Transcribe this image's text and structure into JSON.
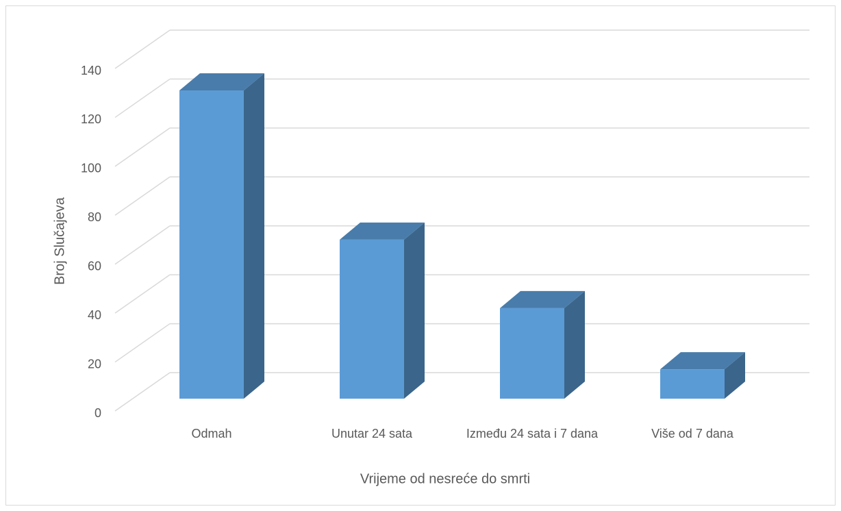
{
  "chart_data": {
    "type": "bar3d",
    "x_label": "Vrijeme od nesreće do smrti",
    "y_label": "Broj Slučajeva",
    "categories": [
      "Odmah",
      "Unutar 24 sata",
      "Između 24 sata i 7 dana",
      "Više od 7 dana"
    ],
    "values": [
      126,
      65,
      37,
      12
    ],
    "color": "#5b9bd5",
    "ylim": [
      0,
      140
    ],
    "yticks": [
      0,
      20,
      40,
      60,
      80,
      100,
      120,
      140
    ],
    "grid": true
  }
}
